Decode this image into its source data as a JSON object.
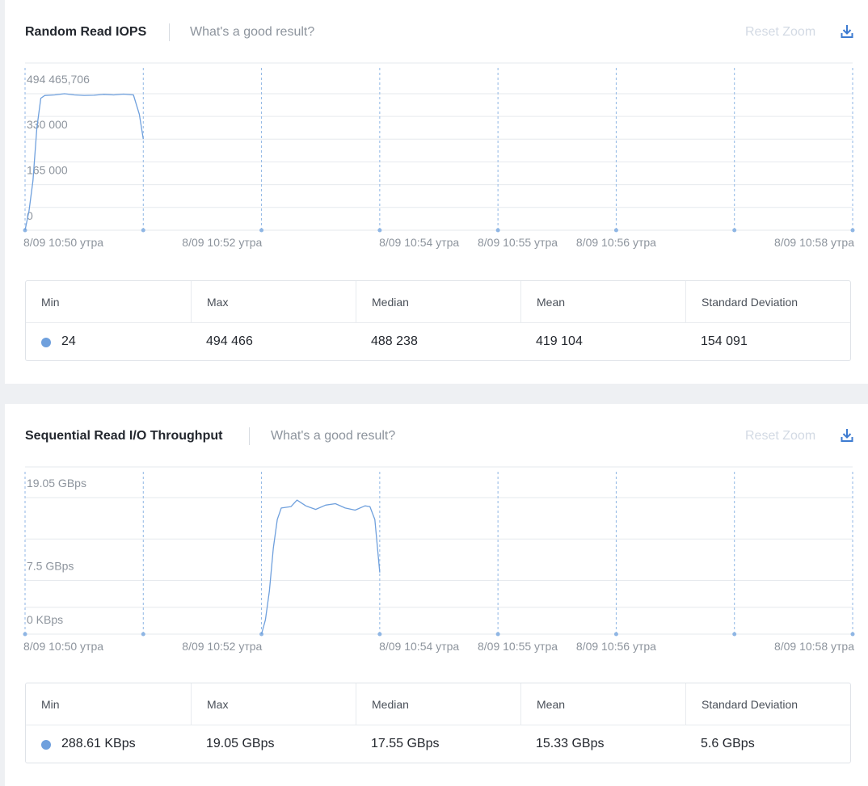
{
  "colors": {
    "series": "#6fa0dd",
    "grid": "#e6e9ee",
    "vline": "#8fb6e4",
    "axis_text": "#8d949d",
    "reset_zoom": "#d3dae4",
    "download": "#3d7bd1"
  },
  "icons": {
    "download": "download-icon"
  },
  "panels": [
    {
      "title": "Random Read IOPS",
      "good_link": "What's a good result?",
      "reset_zoom": "Reset Zoom",
      "stats": {
        "headers": [
          "Min",
          "Max",
          "Median",
          "Mean",
          "Standard Deviation"
        ],
        "values": [
          "24",
          "494 466",
          "488 238",
          "419 104",
          "154 091"
        ]
      }
    },
    {
      "title": "Sequential Read I/O Throughput",
      "good_link": "What's a good result?",
      "reset_zoom": "Reset Zoom",
      "stats": {
        "headers": [
          "Min",
          "Max",
          "Median",
          "Mean",
          "Standard Deviation"
        ],
        "values": [
          "288.61 KBps",
          "19.05 GBps",
          "17.55 GBps",
          "15.33 GBps",
          "5.6 GBps"
        ]
      }
    }
  ],
  "chart_data": [
    {
      "type": "line",
      "title": "Random Read IOPS",
      "y_tick_labels": [
        "0",
        "165 000",
        "330 000",
        "494 465,706"
      ],
      "y_ticks": [
        0,
        165000,
        330000,
        494466
      ],
      "ylim": [
        0,
        494466
      ],
      "x_tick_labels": [
        "8/09 10:50 утра",
        "8/09 10:52 утра",
        "8/09 10:54 утра",
        "8/09 10:55 утра",
        "8/09 10:56 утра",
        "8/09 10:58 утра"
      ],
      "x_tick_minutes": [
        0,
        2,
        4,
        5,
        6,
        8
      ],
      "xlim_minutes": [
        0,
        8.4
      ],
      "marker_minutes": [
        0,
        1.2,
        2.4,
        3.6,
        4.8,
        6.0,
        7.2,
        8.4
      ],
      "grid": true,
      "series": [
        {
          "x": [
            0,
            0.04,
            0.08,
            0.12,
            0.16,
            0.2,
            0.3,
            0.4,
            0.5,
            0.6,
            0.7,
            0.8,
            0.9,
            1.0,
            1.1,
            1.16,
            1.2
          ],
          "y": [
            24,
            70000,
            180000,
            370000,
            478000,
            488000,
            490000,
            494466,
            490000,
            488238,
            489000,
            492000,
            490000,
            493000,
            490000,
            420000,
            330000
          ]
        }
      ]
    },
    {
      "type": "line",
      "title": "Sequential Read I/O Throughput",
      "y_tick_labels": [
        "0 KBps",
        "7.5 GBps",
        "19.05 GBps"
      ],
      "y_ticks": [
        0,
        7.5,
        19.05
      ],
      "ylim": [
        0,
        19.05
      ],
      "x_tick_labels": [
        "8/09 10:50 утра",
        "8/09 10:52 утра",
        "8/09 10:54 утра",
        "8/09 10:55 утра",
        "8/09 10:56 утра",
        "8/09 10:58 утра"
      ],
      "x_tick_minutes": [
        0,
        2,
        4,
        5,
        6,
        8
      ],
      "xlim_minutes": [
        0,
        8.4
      ],
      "marker_minutes": [
        0,
        1.2,
        2.4,
        3.6,
        4.8,
        6.0,
        7.2,
        8.4
      ],
      "grid": true,
      "series": [
        {
          "x": [
            2.4,
            2.44,
            2.48,
            2.52,
            2.56,
            2.6,
            2.7,
            2.76,
            2.85,
            2.95,
            3.05,
            3.15,
            3.25,
            3.35,
            3.45,
            3.5,
            3.55,
            3.6
          ],
          "y": [
            0.00029,
            2.0,
            6.0,
            12.0,
            16.0,
            17.6,
            17.8,
            18.7,
            17.9,
            17.4,
            18.0,
            18.2,
            17.6,
            17.3,
            17.9,
            17.8,
            16.0,
            8.6
          ]
        }
      ]
    }
  ]
}
